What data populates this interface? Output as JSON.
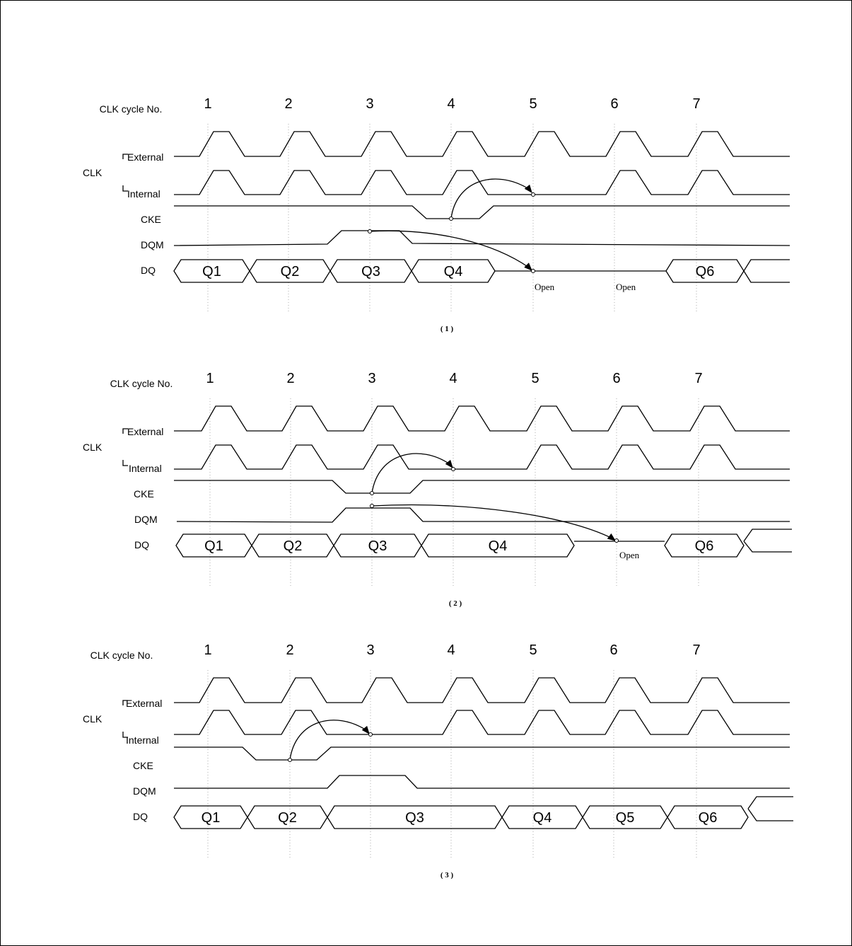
{
  "labels": {
    "cycle": "CLK cycle No.",
    "clk": "CLK",
    "external": "External",
    "internal": "Internal",
    "cke": "CKE",
    "dqm": "DQM",
    "dq": "DQ",
    "open": "Open"
  },
  "diagrams": [
    {
      "caption": "( 1 )",
      "cycles": [
        "1",
        "2",
        "3",
        "4",
        "5",
        "6",
        "7"
      ],
      "dq": [
        "Q1",
        "Q2",
        "Q3",
        "Q4",
        "Q6"
      ],
      "open_notes": [
        "Open",
        "Open"
      ]
    },
    {
      "caption": "( 2 )",
      "cycles": [
        "1",
        "2",
        "3",
        "4",
        "5",
        "6",
        "7"
      ],
      "dq": [
        "Q1",
        "Q2",
        "Q3",
        "Q4",
        "Q6"
      ],
      "open_notes": [
        "Open"
      ]
    },
    {
      "caption": "( 3 )",
      "cycles": [
        "1",
        "2",
        "3",
        "4",
        "5",
        "6",
        "7"
      ],
      "dq": [
        "Q1",
        "Q2",
        "Q3",
        "Q4",
        "Q5",
        "Q6"
      ],
      "open_notes": []
    }
  ]
}
